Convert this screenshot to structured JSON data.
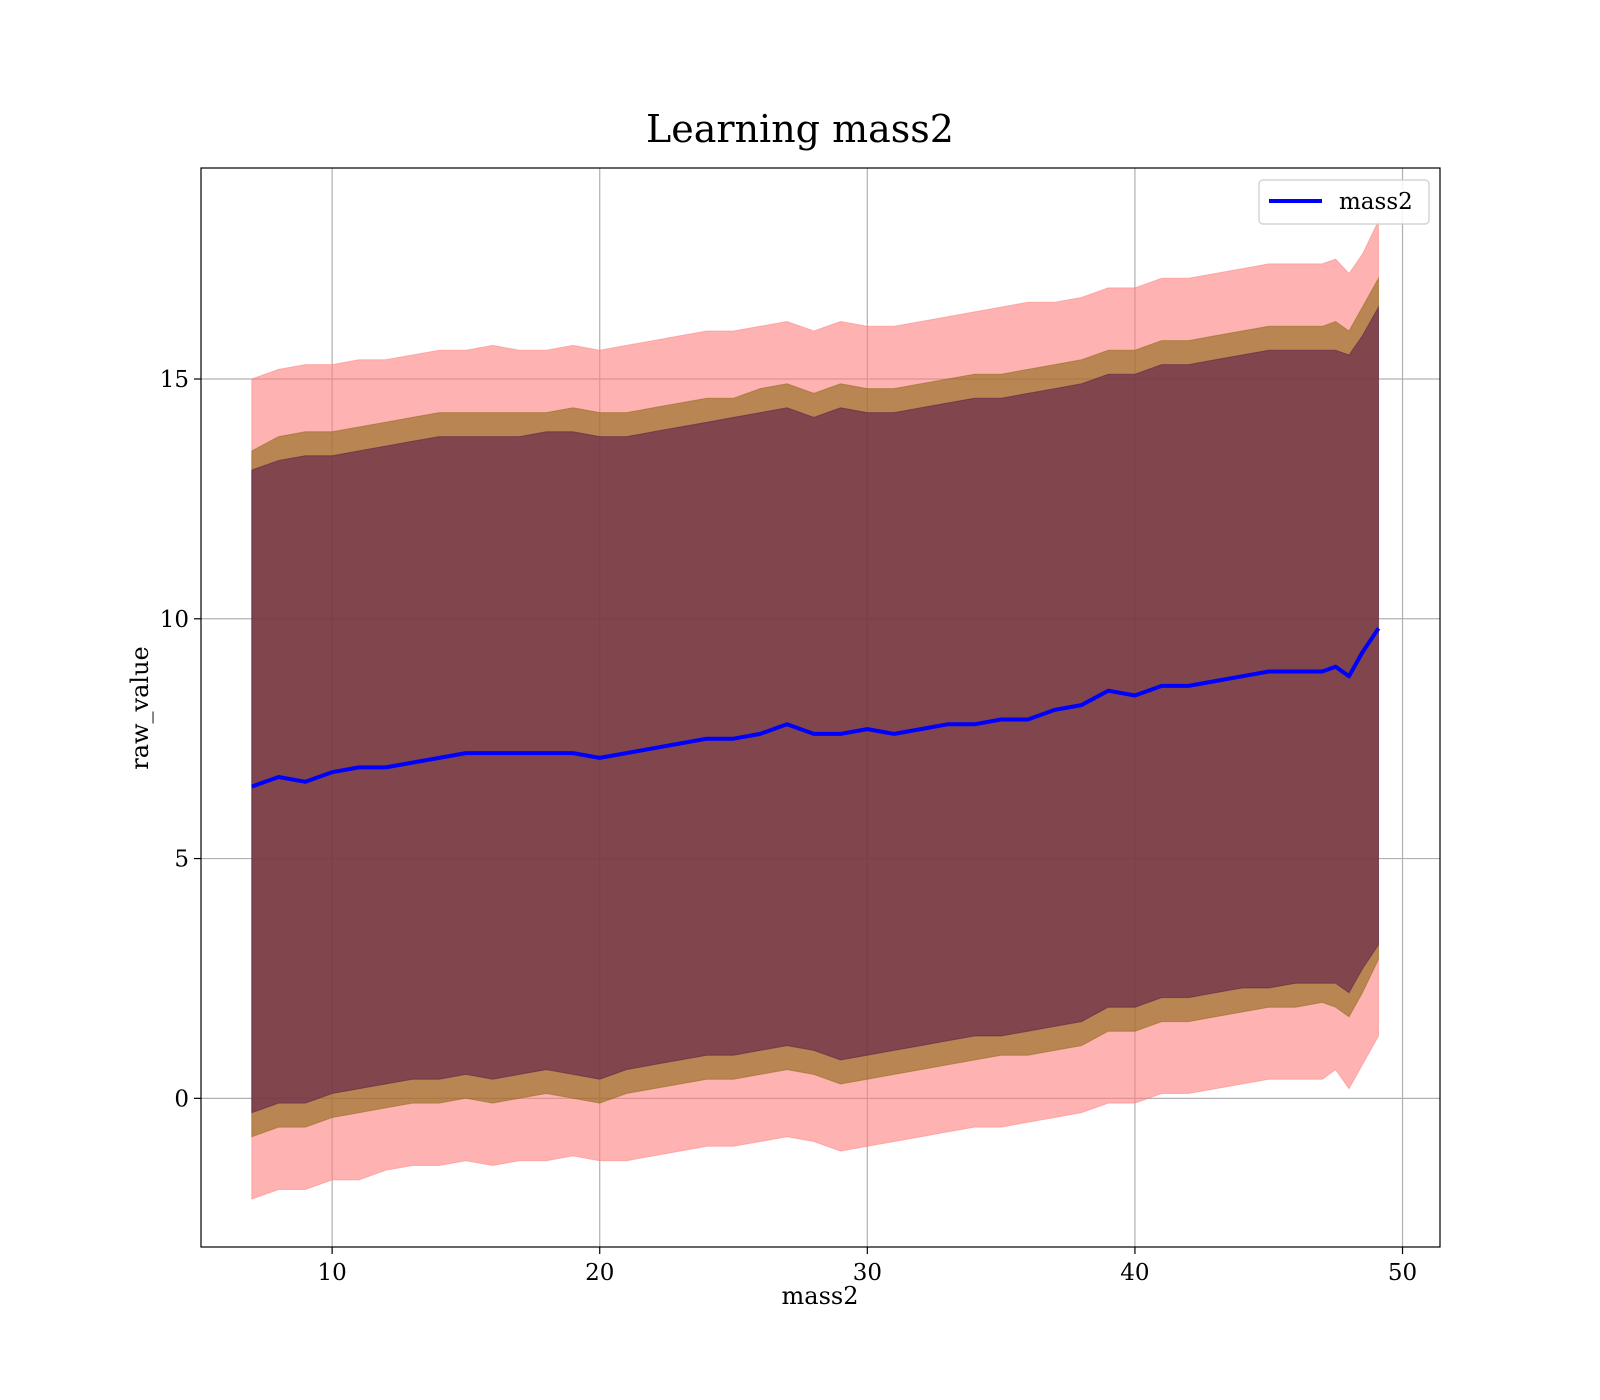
{
  "chart_data": {
    "type": "line",
    "title": "Learning mass2",
    "xlabel": "mass2",
    "ylabel": "raw_value",
    "xlim": [
      5.1,
      51.4
    ],
    "ylim": [
      -3.1,
      19.4
    ],
    "xticks": [
      10,
      20,
      30,
      40,
      50
    ],
    "yticks": [
      0,
      5,
      10,
      15
    ],
    "grid": true,
    "legend_position": "upper right",
    "x": [
      7.0,
      8.0,
      9.0,
      10.0,
      11.0,
      12.0,
      13.0,
      14.0,
      15.0,
      16.0,
      17.0,
      18.0,
      19.0,
      20.0,
      21.0,
      22.0,
      23.0,
      24.0,
      25.0,
      26.0,
      27.0,
      28.0,
      29.0,
      30.0,
      31.0,
      32.0,
      33.0,
      34.0,
      35.0,
      36.0,
      37.0,
      38.0,
      39.0,
      40.0,
      41.0,
      42.0,
      43.0,
      44.0,
      45.0,
      46.0,
      47.0,
      47.5,
      48.0,
      48.5,
      49.1
    ],
    "series": [
      {
        "name": "mass2",
        "color": "#0000ff",
        "values": [
          6.5,
          6.7,
          6.6,
          6.8,
          6.9,
          6.9,
          7.0,
          7.1,
          7.2,
          7.2,
          7.2,
          7.2,
          7.2,
          7.1,
          7.2,
          7.3,
          7.4,
          7.5,
          7.5,
          7.6,
          7.8,
          7.6,
          7.6,
          7.7,
          7.6,
          7.7,
          7.8,
          7.8,
          7.9,
          7.9,
          8.1,
          8.2,
          8.5,
          8.4,
          8.6,
          8.6,
          8.7,
          8.8,
          8.9,
          8.9,
          8.9,
          9.0,
          8.8,
          9.3,
          9.8
        ]
      }
    ],
    "bands": [
      {
        "color": "#ff7f7f",
        "upper": [
          15.0,
          15.2,
          15.3,
          15.3,
          15.4,
          15.4,
          15.5,
          15.6,
          15.6,
          15.7,
          15.6,
          15.6,
          15.7,
          15.6,
          15.7,
          15.8,
          15.9,
          16.0,
          16.0,
          16.1,
          16.2,
          16.0,
          16.2,
          16.1,
          16.1,
          16.2,
          16.3,
          16.4,
          16.5,
          16.6,
          16.6,
          16.7,
          16.9,
          16.9,
          17.1,
          17.1,
          17.2,
          17.3,
          17.4,
          17.4,
          17.4,
          17.5,
          17.2,
          17.6,
          18.3
        ],
        "lower": [
          -2.1,
          -1.9,
          -1.9,
          -1.7,
          -1.7,
          -1.5,
          -1.4,
          -1.4,
          -1.3,
          -1.4,
          -1.3,
          -1.3,
          -1.2,
          -1.3,
          -1.3,
          -1.2,
          -1.1,
          -1.0,
          -1.0,
          -0.9,
          -0.8,
          -0.9,
          -1.1,
          -1.0,
          -0.9,
          -0.8,
          -0.7,
          -0.6,
          -0.6,
          -0.5,
          -0.4,
          -0.3,
          -0.1,
          -0.1,
          0.1,
          0.1,
          0.2,
          0.3,
          0.4,
          0.4,
          0.4,
          0.6,
          0.2,
          0.7,
          1.3
        ]
      },
      {
        "color": "#8b6914",
        "upper": [
          13.5,
          13.8,
          13.9,
          13.9,
          14.0,
          14.1,
          14.2,
          14.3,
          14.3,
          14.3,
          14.3,
          14.3,
          14.4,
          14.3,
          14.3,
          14.4,
          14.5,
          14.6,
          14.6,
          14.8,
          14.9,
          14.7,
          14.9,
          14.8,
          14.8,
          14.9,
          15.0,
          15.1,
          15.1,
          15.2,
          15.3,
          15.4,
          15.6,
          15.6,
          15.8,
          15.8,
          15.9,
          16.0,
          16.1,
          16.1,
          16.1,
          16.2,
          16.0,
          16.5,
          17.1
        ],
        "lower": [
          -0.8,
          -0.6,
          -0.6,
          -0.4,
          -0.3,
          -0.2,
          -0.1,
          -0.1,
          0.0,
          -0.1,
          0.0,
          0.1,
          0.0,
          -0.1,
          0.1,
          0.2,
          0.3,
          0.4,
          0.4,
          0.5,
          0.6,
          0.5,
          0.3,
          0.4,
          0.5,
          0.6,
          0.7,
          0.8,
          0.9,
          0.9,
          1.0,
          1.1,
          1.4,
          1.4,
          1.6,
          1.6,
          1.7,
          1.8,
          1.9,
          1.9,
          2.0,
          1.9,
          1.7,
          2.2,
          2.9
        ]
      },
      {
        "color": "#5a1a4a",
        "upper": [
          13.1,
          13.3,
          13.4,
          13.4,
          13.5,
          13.6,
          13.7,
          13.8,
          13.8,
          13.8,
          13.8,
          13.9,
          13.9,
          13.8,
          13.8,
          13.9,
          14.0,
          14.1,
          14.2,
          14.3,
          14.4,
          14.2,
          14.4,
          14.3,
          14.3,
          14.4,
          14.5,
          14.6,
          14.6,
          14.7,
          14.8,
          14.9,
          15.1,
          15.1,
          15.3,
          15.3,
          15.4,
          15.5,
          15.6,
          15.6,
          15.6,
          15.6,
          15.5,
          15.9,
          16.5
        ],
        "lower": [
          -0.3,
          -0.1,
          -0.1,
          0.1,
          0.2,
          0.3,
          0.4,
          0.4,
          0.5,
          0.4,
          0.5,
          0.6,
          0.5,
          0.4,
          0.6,
          0.7,
          0.8,
          0.9,
          0.9,
          1.0,
          1.1,
          1.0,
          0.8,
          0.9,
          1.0,
          1.1,
          1.2,
          1.3,
          1.3,
          1.4,
          1.5,
          1.6,
          1.9,
          1.9,
          2.1,
          2.1,
          2.2,
          2.3,
          2.3,
          2.4,
          2.4,
          2.4,
          2.2,
          2.7,
          3.2
        ]
      }
    ]
  }
}
